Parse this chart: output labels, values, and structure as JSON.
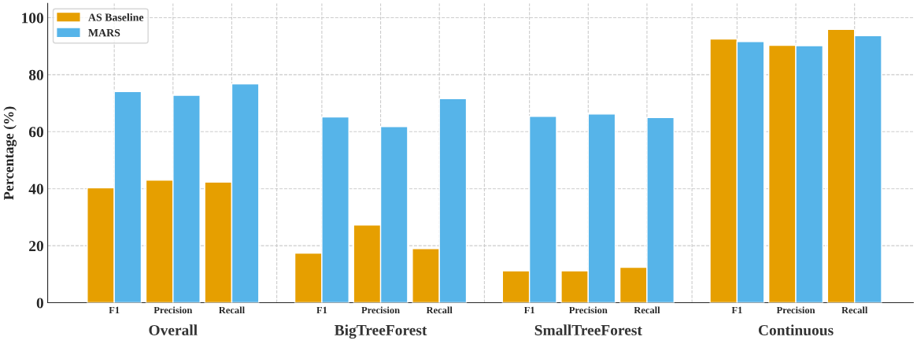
{
  "chart_data": {
    "type": "bar",
    "ylabel": "Percentage (%)",
    "categories": [
      "F1",
      "Precision",
      "Recall",
      "F1",
      "Precision",
      "Recall",
      "F1",
      "Precision",
      "Recall",
      "F1",
      "Precision",
      "Recall"
    ],
    "series": [
      {
        "name": "AS Baseline",
        "color": "#e69f00",
        "values": [
          40.3,
          43.0,
          42.3,
          17.4,
          27.3,
          19.0,
          11.2,
          11.2,
          12.4,
          92.5,
          90.3,
          95.9
        ]
      },
      {
        "name": "MARS",
        "color": "#56b4e9",
        "values": [
          74.1,
          72.8,
          76.8,
          65.2,
          61.8,
          71.6,
          65.4,
          66.2,
          65.0,
          91.6,
          90.2,
          93.7
        ]
      }
    ],
    "annotations": [
      "Overall",
      "BigTreeForest",
      "SmallTreeForest",
      "Continuous"
    ],
    "ylim": [
      0,
      105
    ],
    "yticks": [
      0,
      20,
      40,
      60,
      80,
      100
    ],
    "grid": true,
    "legend": "top left"
  }
}
